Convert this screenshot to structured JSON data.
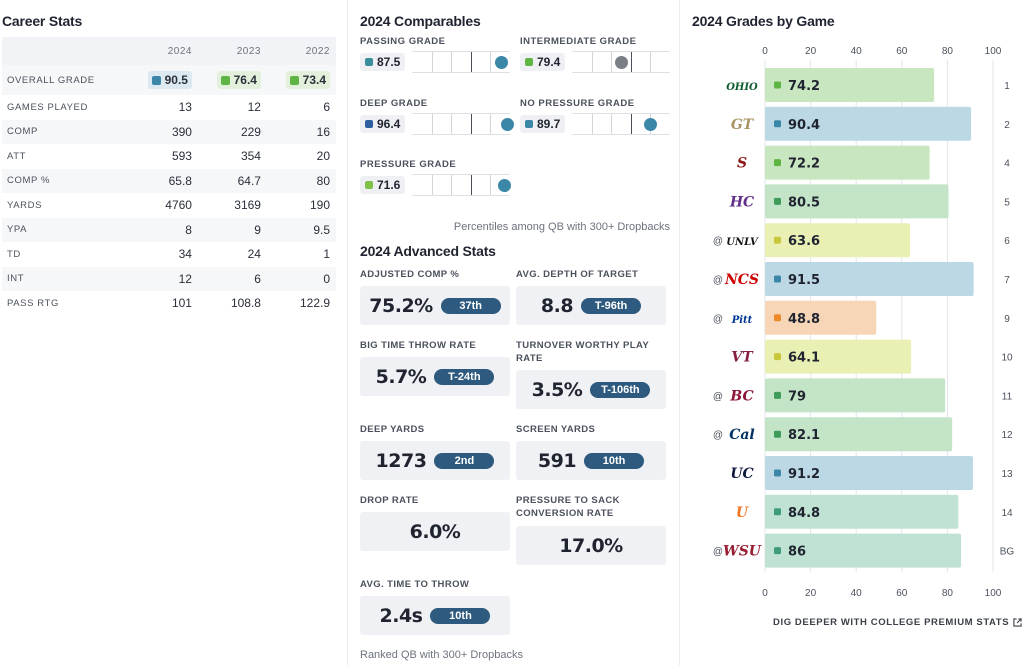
{
  "career": {
    "title": "Career Stats",
    "years": [
      "2024",
      "2023",
      "2022"
    ],
    "grade_row": {
      "label": "OVERALL GRADE",
      "values": [
        {
          "value": "90.5",
          "color": "#3b87a8",
          "bg": "#dde9f0"
        },
        {
          "value": "76.4",
          "color": "#5fb544",
          "bg": "#e3f0dc"
        },
        {
          "value": "73.4",
          "color": "#5fb544",
          "bg": "#e3f0dc"
        }
      ]
    },
    "rows": [
      {
        "label": "GAMES PLAYED",
        "values": [
          "13",
          "12",
          "6"
        ]
      },
      {
        "label": "COMP",
        "values": [
          "390",
          "229",
          "16"
        ]
      },
      {
        "label": "ATT",
        "values": [
          "593",
          "354",
          "20"
        ]
      },
      {
        "label": "COMP %",
        "values": [
          "65.8",
          "64.7",
          "80"
        ]
      },
      {
        "label": "YARDS",
        "values": [
          "4760",
          "3169",
          "190"
        ]
      },
      {
        "label": "YPA",
        "values": [
          "8",
          "9",
          "9.5"
        ]
      },
      {
        "label": "TD",
        "values": [
          "34",
          "24",
          "1"
        ]
      },
      {
        "label": "INT",
        "values": [
          "12",
          "6",
          "0"
        ]
      },
      {
        "label": "PASS RTG",
        "values": [
          "101",
          "108.8",
          "122.9"
        ]
      }
    ]
  },
  "comparables": {
    "title": "2024 Comparables",
    "note": "Percentiles among QB with 300+ Dropbacks",
    "items": [
      {
        "label": "PASSING GRADE",
        "value": "87.5",
        "color": "#3b8f9c",
        "dot_color": "#3b87a8",
        "percentile": 0.91
      },
      {
        "label": "INTERMEDIATE GRADE",
        "value": "79.4",
        "color": "#5fb544",
        "dot_color": "#7a7f86",
        "percentile": 0.5
      },
      {
        "label": "DEEP GRADE",
        "value": "96.4",
        "color": "#2f5f9e",
        "dot_color": "#3b87a8",
        "percentile": 0.97
      },
      {
        "label": "NO PRESSURE GRADE",
        "value": "89.7",
        "color": "#3b87a8",
        "dot_color": "#3b87a8",
        "percentile": 0.8
      },
      {
        "label": "PRESSURE GRADE",
        "value": "71.6",
        "color": "#7ec24a",
        "dot_color": "#3b87a8",
        "percentile": 0.94
      }
    ]
  },
  "advanced": {
    "title": "2024 Advanced Stats",
    "note": "Ranked QB with 300+ Dropbacks",
    "cards": [
      {
        "label": "ADJUSTED COMP %",
        "value": "75.2%",
        "rank": "37th"
      },
      {
        "label": "AVG. DEPTH OF TARGET",
        "value": "8.8",
        "rank": "T-96th"
      },
      {
        "label": "BIG TIME THROW RATE",
        "value": "5.7%",
        "rank": "T-24th"
      },
      {
        "label": "TURNOVER WORTHY PLAY RATE",
        "value": "3.5%",
        "rank": "T-106th"
      },
      {
        "label": "DEEP YARDS",
        "value": "1273",
        "rank": "2nd"
      },
      {
        "label": "SCREEN YARDS",
        "value": "591",
        "rank": "10th"
      },
      {
        "label": "DROP RATE",
        "value": "6.0%",
        "rank": ""
      },
      {
        "label": "PRESSURE TO SACK CONVERSION RATE",
        "value": "17.0%",
        "rank": ""
      },
      {
        "label": "AVG. TIME TO THROW",
        "value": "2.4s",
        "rank": "10th"
      }
    ]
  },
  "games": {
    "title": "2024 Grades by Game",
    "link": "DIG DEEPER WITH COLLEGE PREMIUM STATS",
    "icons": [
      "external-link-icon"
    ],
    "chart_data": {
      "type": "bar",
      "orientation": "horizontal",
      "xlim": [
        0,
        100
      ],
      "xticks": [
        "0",
        "20",
        "40",
        "60",
        "80",
        "100"
      ],
      "categories": [
        "1",
        "2",
        "4",
        "5",
        "6",
        "7",
        "9",
        "10",
        "11",
        "12",
        "13",
        "14",
        "BG"
      ],
      "values": [
        74.2,
        90.4,
        72.2,
        80.5,
        63.6,
        91.5,
        48.8,
        64.1,
        79,
        82.1,
        91.2,
        84.8,
        86
      ],
      "labels": [
        "74.2",
        "90.4",
        "72.2",
        "80.5",
        "63.6",
        "91.5",
        "48.8",
        "64.1",
        "79",
        "82.1",
        "91.2",
        "84.8",
        "86"
      ],
      "away": [
        false,
        false,
        false,
        false,
        true,
        true,
        true,
        false,
        true,
        true,
        false,
        false,
        true
      ],
      "away_marker": "@",
      "opponents": [
        {
          "logo": "ohio-logo-icon",
          "text": "OHIO",
          "color": "#0c5a2d"
        },
        {
          "logo": "georgia-tech-logo-icon",
          "text": "GT",
          "color": "#a89464"
        },
        {
          "logo": "stanford-logo-icon",
          "text": "S",
          "color": "#8c1515"
        },
        {
          "logo": "holy-cross-logo-icon",
          "text": "HC",
          "color": "#602d89"
        },
        {
          "logo": "unlv-logo-icon",
          "text": "UNLV",
          "color": "#111111"
        },
        {
          "logo": "nc-state-logo-icon",
          "text": "NCS",
          "color": "#cc0000"
        },
        {
          "logo": "pitt-logo-icon",
          "text": "Pitt",
          "color": "#003594"
        },
        {
          "logo": "virginia-tech-logo-icon",
          "text": "VT",
          "color": "#861f41"
        },
        {
          "logo": "boston-college-logo-icon",
          "text": "BC",
          "color": "#8a1538"
        },
        {
          "logo": "cal-logo-icon",
          "text": "Cal",
          "color": "#003262"
        },
        {
          "logo": "uconn-logo-icon",
          "text": "UC",
          "color": "#0e1a3d"
        },
        {
          "logo": "miami-logo-icon",
          "text": "U",
          "color": "#f47321"
        },
        {
          "logo": "washington-state-logo-icon",
          "text": "WSU",
          "color": "#981e32"
        }
      ],
      "bar_colors": [
        "#c8e6c0",
        "#bcd8e5",
        "#c8e6c0",
        "#c4e4c8",
        "#eaf0b4",
        "#bcd8e5",
        "#f7d6b8",
        "#eaf0b4",
        "#c4e4c8",
        "#c4e4c8",
        "#bcd8e5",
        "#bfe2d2",
        "#bfe2d2"
      ],
      "sq_colors": [
        "#5fb544",
        "#3b87a8",
        "#5fb544",
        "#3d9c5a",
        "#c8c73b",
        "#3b87a8",
        "#ee8a2a",
        "#c8c73b",
        "#3d9c5a",
        "#3d9c5a",
        "#3b87a8",
        "#3d9c7a",
        "#3d9c7a"
      ]
    }
  }
}
